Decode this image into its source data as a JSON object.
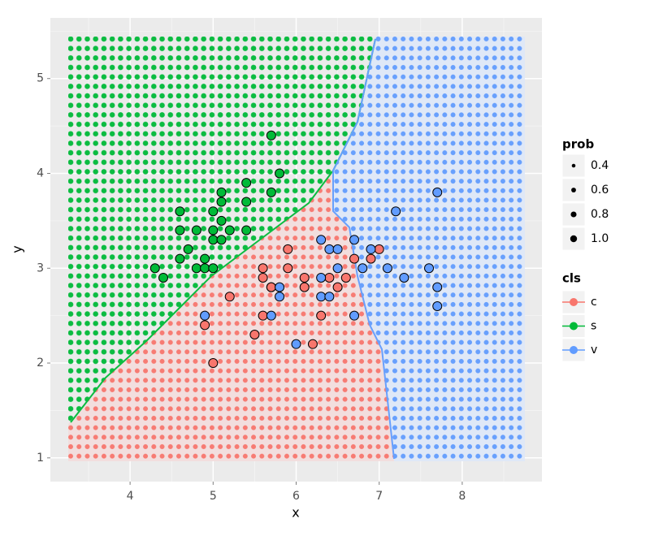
{
  "chart_data": {
    "type": "scatter",
    "x_label": "x",
    "y_label": "y",
    "xlim": [
      3.04,
      8.96
    ],
    "ylim": [
      0.75,
      5.64
    ],
    "xticks": [
      4,
      5,
      6,
      7,
      8
    ],
    "yticks": [
      1,
      2,
      3,
      4,
      5
    ],
    "grid": true,
    "legend_position": "right",
    "size_legend": {
      "title": "prob",
      "values": [
        0.4,
        0.6,
        0.8,
        {
          "value": 1,
          "label": "1.0"
        }
      ]
    },
    "color_legend_title": "cls",
    "series": [
      {
        "name": "c",
        "color": "#f8766d",
        "x": [
          4.9,
          5.0,
          5.2,
          5.5,
          5.6,
          5.6,
          5.6,
          5.7,
          5.9,
          5.9,
          6.1,
          6.1,
          6.2,
          6.3,
          6.4,
          6.5,
          6.6,
          6.7,
          6.9,
          7.0,
          5.7
        ],
        "values": [
          2.4,
          2.0,
          2.7,
          2.3,
          2.5,
          2.9,
          3.0,
          2.8,
          3.2,
          3.0,
          2.9,
          2.8,
          2.2,
          2.5,
          2.9,
          2.8,
          2.9,
          3.1,
          3.1,
          3.2,
          2.8
        ]
      },
      {
        "name": "s",
        "color": "#00ba38",
        "x": [
          4.3,
          4.4,
          4.6,
          4.6,
          4.6,
          4.7,
          4.8,
          4.8,
          4.9,
          4.9,
          5.0,
          5.0,
          5.0,
          5.0,
          5.1,
          5.1,
          5.1,
          5.1,
          5.2,
          5.4,
          5.4,
          5.4,
          5.7,
          5.8,
          5.7
        ],
        "values": [
          3.0,
          2.9,
          3.6,
          3.4,
          3.1,
          3.2,
          3.4,
          3.0,
          3.1,
          3.0,
          3.6,
          3.4,
          3.3,
          3.0,
          3.8,
          3.7,
          3.5,
          3.3,
          3.4,
          3.9,
          3.7,
          3.4,
          4.4,
          4.0,
          3.8
        ]
      },
      {
        "name": "v",
        "color": "#619cff",
        "x": [
          4.9,
          5.7,
          5.8,
          5.8,
          6.0,
          6.3,
          6.3,
          6.3,
          6.4,
          6.5,
          6.5,
          6.4,
          6.7,
          6.7,
          6.8,
          6.9,
          7.1,
          7.2,
          7.3,
          7.6,
          7.7,
          7.7,
          7.7
        ],
        "values": [
          2.5,
          2.5,
          2.7,
          2.8,
          2.2,
          3.3,
          2.9,
          2.7,
          3.2,
          3.2,
          3.0,
          2.7,
          3.3,
          2.5,
          3.0,
          3.2,
          3.0,
          3.6,
          2.9,
          3.0,
          3.8,
          2.8,
          2.6
        ]
      }
    ]
  }
}
